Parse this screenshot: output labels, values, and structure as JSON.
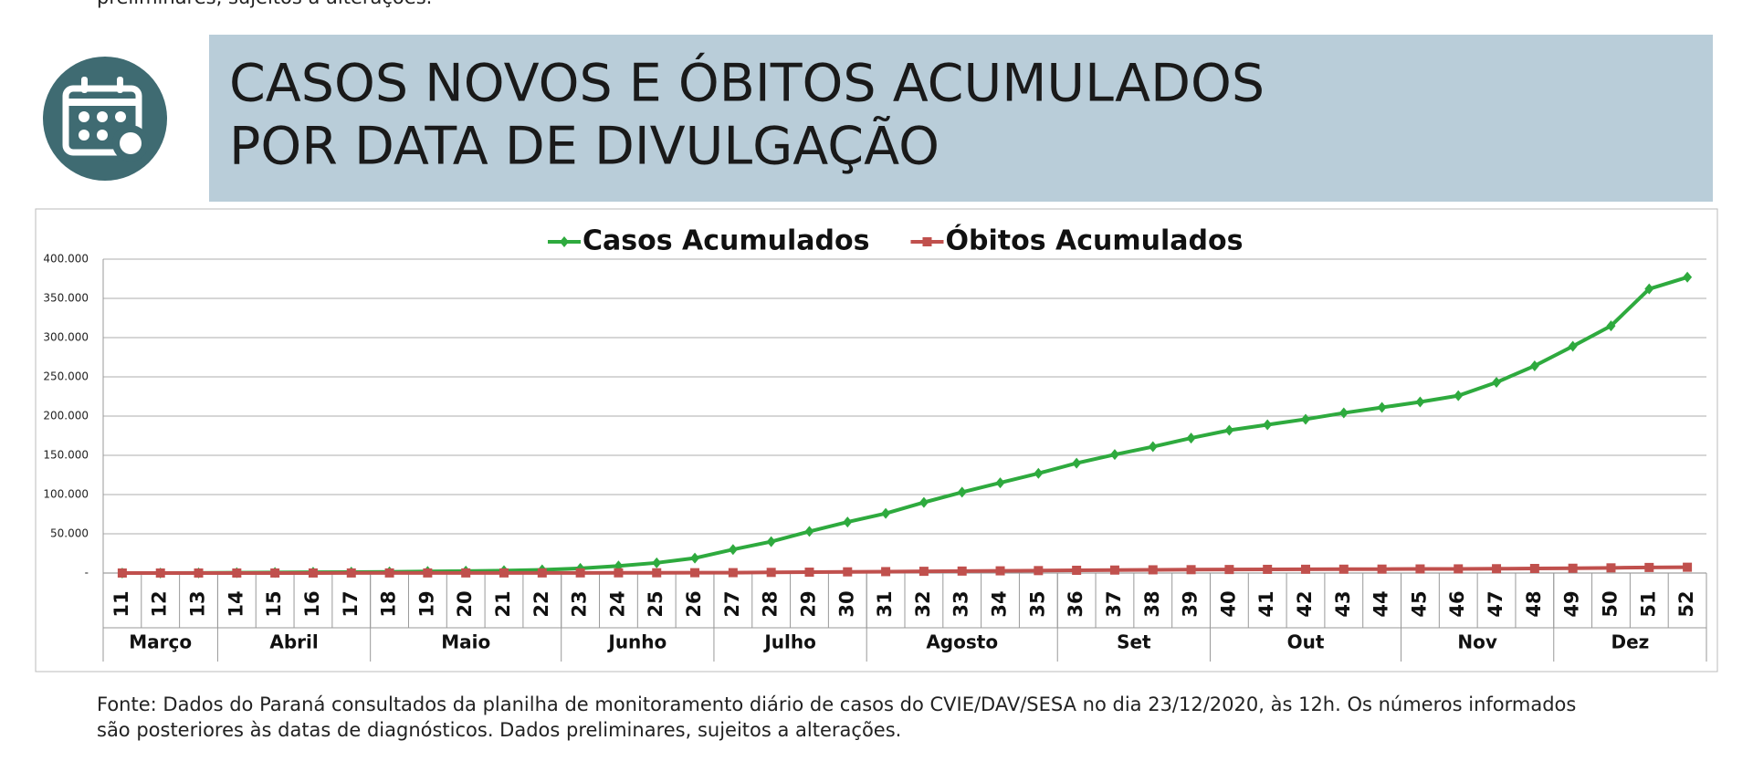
{
  "top_note": "preliminares, sujeitos a alterações.",
  "header": {
    "title_line1": "CASOS NOVOS E ÓBITOS ACUMULADOS",
    "title_line2": "POR DATA DE DIVULGAÇÃO"
  },
  "chart_data": {
    "type": "line",
    "categories": [
      "11",
      "12",
      "13",
      "14",
      "15",
      "16",
      "17",
      "18",
      "19",
      "20",
      "21",
      "22",
      "23",
      "24",
      "25",
      "26",
      "27",
      "28",
      "29",
      "30",
      "31",
      "32",
      "33",
      "34",
      "35",
      "36",
      "37",
      "38",
      "39",
      "40",
      "41",
      "42",
      "43",
      "44",
      "45",
      "46",
      "47",
      "48",
      "49",
      "50",
      "51",
      "52"
    ],
    "category_groups": [
      {
        "label": "Março",
        "first": "11",
        "last": "13"
      },
      {
        "label": "Abril",
        "first": "14",
        "last": "17"
      },
      {
        "label": "Maio",
        "first": "18",
        "last": "22"
      },
      {
        "label": "Junho",
        "first": "23",
        "last": "26"
      },
      {
        "label": "Julho",
        "first": "27",
        "last": "30"
      },
      {
        "label": "Agosto",
        "first": "31",
        "last": "35"
      },
      {
        "label": "Set",
        "first": "36",
        "last": "39"
      },
      {
        "label": "Out",
        "first": "40",
        "last": "44"
      },
      {
        "label": "Nov",
        "first": "45",
        "last": "48"
      },
      {
        "label": "Dez",
        "first": "49",
        "last": "52"
      }
    ],
    "series": [
      {
        "name": "Casos Acumulados",
        "color": "#2eaa3e",
        "marker": "diamond",
        "values": [
          10,
          40,
          100,
          400,
          700,
          1000,
          1200,
          1500,
          2000,
          2500,
          3000,
          4000,
          6000,
          9000,
          13000,
          19000,
          30000,
          40000,
          53000,
          65000,
          76000,
          90000,
          103000,
          115000,
          127000,
          140000,
          151000,
          161000,
          172000,
          182000,
          189000,
          196000,
          204000,
          211000,
          218000,
          226000,
          243000,
          264000,
          289000,
          315000,
          362000,
          377000
        ]
      },
      {
        "name": "Óbitos Acumulados",
        "color": "#c0504d",
        "marker": "square",
        "values": [
          0,
          1,
          3,
          10,
          30,
          60,
          90,
          110,
          130,
          140,
          150,
          160,
          200,
          260,
          330,
          420,
          500,
          800,
          1100,
          1500,
          1800,
          2200,
          2500,
          2800,
          3100,
          3500,
          3800,
          4100,
          4300,
          4500,
          4700,
          4800,
          4900,
          5000,
          5200,
          5300,
          5500,
          5800,
          6100,
          6600,
          7100,
          7400
        ]
      }
    ],
    "ylim": [
      0,
      400000
    ],
    "yticks": [
      {
        "value": 0,
        "label": "-"
      },
      {
        "value": 50000,
        "label": "50.000"
      },
      {
        "value": 100000,
        "label": "100.000"
      },
      {
        "value": 150000,
        "label": "150.000"
      },
      {
        "value": 200000,
        "label": "200.000"
      },
      {
        "value": 250000,
        "label": "250.000"
      },
      {
        "value": 300000,
        "label": "300.000"
      },
      {
        "value": 350000,
        "label": "350.000"
      },
      {
        "value": 400000,
        "label": "400.000"
      }
    ],
    "grid": true,
    "legend": "top"
  },
  "footer": {
    "line1": "Fonte: Dados do Paraná consultados da planilha de monitoramento diário de casos do CVIE/DAV/SESA no dia 23/12/2020, às 12h. Os números informados",
    "line2": "são posteriores às datas de diagnósticos. Dados preliminares, sujeitos a alterações."
  }
}
